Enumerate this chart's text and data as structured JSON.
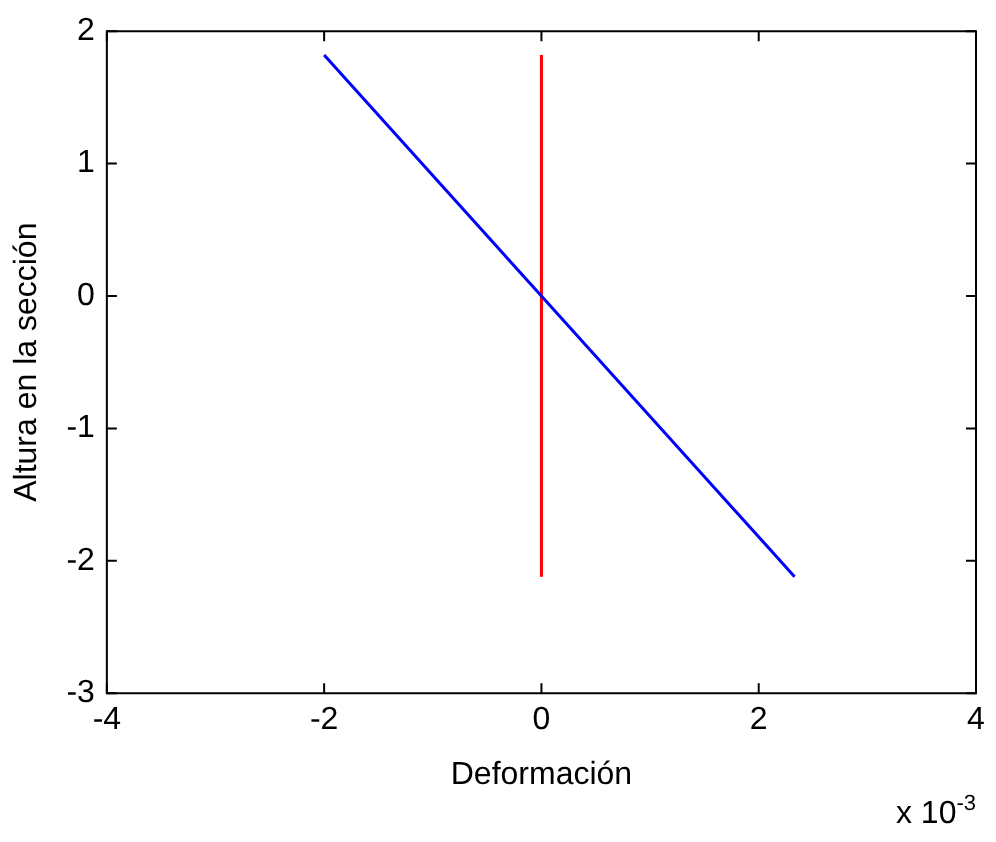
{
  "chart_data": {
    "type": "line",
    "xlabel": "Deformación",
    "ylabel": "Altura en la sección",
    "xlim": [
      -4,
      4
    ],
    "xticks": [
      -4,
      -2,
      0,
      2,
      4
    ],
    "ylim": [
      -3,
      2
    ],
    "yticks": [
      -3,
      -2,
      -1,
      0,
      1,
      2
    ],
    "annotations": [
      "x 10$^{-3}$"
    ],
    "grid": false,
    "legend": false,
    "marker": "none",
    "line_style": "solid",
    "series": [
      {
        "color": "#0000ff",
        "x": [
          -2,
          0,
          2.33
        ],
        "values": [
          1.82,
          0,
          -2.12
        ]
      },
      {
        "color": "#ff0000",
        "x": [
          0,
          0
        ],
        "values": [
          -2.12,
          1.82
        ]
      }
    ]
  }
}
